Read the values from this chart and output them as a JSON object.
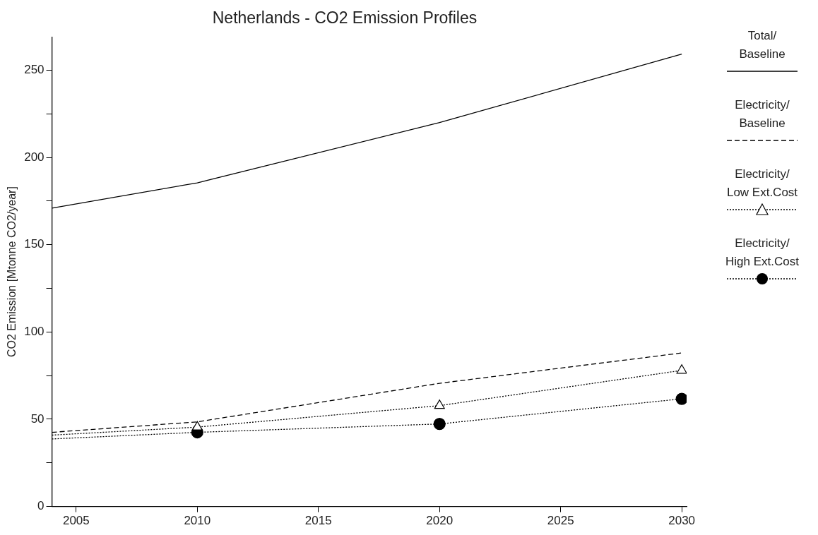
{
  "chart_data": {
    "type": "line",
    "title": "Netherlands - CO2 Emission Profiles",
    "ylabel": "CO2 Emission [Mtonne CO2/year]",
    "x": [
      2004,
      2010,
      2020,
      2030
    ],
    "series": [
      {
        "name": "Total/Baseline",
        "color": "#000000",
        "line_style": "solid",
        "marker": "none",
        "values": [
          171,
          185.5,
          220,
          259.3
        ]
      },
      {
        "name": "Electricity/Baseline",
        "color": "#000000",
        "line_style": "dashed",
        "marker": "none",
        "values": [
          42.5,
          48.5,
          70.6,
          88
        ]
      },
      {
        "name": "Electricity/Low Ext.Cost",
        "color": "#000000",
        "line_style": "dotted",
        "marker": "triangle",
        "values": [
          40.9,
          45.5,
          57.8,
          78
        ]
      },
      {
        "name": "Electricity/High Ext.Cost",
        "color": "#000000",
        "line_style": "dotted",
        "marker": "circle",
        "values": [
          38.7,
          42.5,
          47.3,
          61.7
        ]
      }
    ],
    "xlim": [
      2004,
      2030.2
    ],
    "xticks": [
      2005,
      2010,
      2015,
      2020,
      2025,
      2030
    ],
    "ylim": [
      0,
      269
    ],
    "yticks": [
      0,
      {
        "value": 25,
        "label": null
      },
      50,
      {
        "value": 75,
        "label": null
      },
      100,
      {
        "value": 125,
        "label": null
      },
      150,
      {
        "value": 175,
        "label": null
      },
      200,
      {
        "value": 225,
        "label": null
      },
      250
    ],
    "grid": false,
    "legend": "right"
  }
}
